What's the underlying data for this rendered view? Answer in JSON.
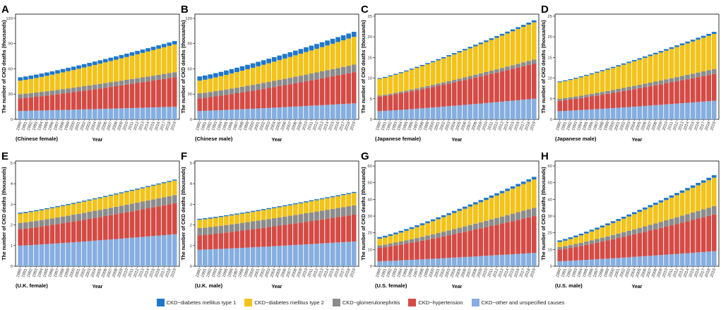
{
  "legend": [
    {
      "label": "CKD−diabetes mellitus type 1",
      "color": "#1f77c9"
    },
    {
      "label": "CKD−diabetes mellitus type 2",
      "color": "#f2c31b"
    },
    {
      "label": "CKD−glomerulonephritis",
      "color": "#8c8c8c"
    },
    {
      "label": "CKD−hypertension",
      "color": "#d44b45"
    },
    {
      "label": "CKD−other and unspecified causes",
      "color": "#86aee0"
    }
  ],
  "chart_data": [
    {
      "panel": "A",
      "type": "bar",
      "stacked": true,
      "subtitle": "(Chinese female)",
      "xlabel": "Year",
      "ylabel": "The number of CKD deaths (thousands)",
      "ylim": [
        0,
        125
      ],
      "yticks": [
        0,
        30,
        60,
        90,
        120
      ],
      "x_start": 1990,
      "x_end": 2019,
      "series": [
        {
          "name": "CKD−other and unspecified causes",
          "start": 10,
          "end": 15
        },
        {
          "name": "CKD−hypertension",
          "start": 15,
          "end": 35
        },
        {
          "name": "CKD−glomerulonephritis",
          "start": 5,
          "end": 6
        },
        {
          "name": "CKD−diabetes mellitus type 2",
          "start": 16,
          "end": 33
        },
        {
          "name": "CKD−diabetes mellitus type 1",
          "start": 4,
          "end": 4
        }
      ]
    },
    {
      "panel": "B",
      "type": "bar",
      "stacked": true,
      "subtitle": "(Chinese male)",
      "xlabel": "Year",
      "ylabel": "The number of CKD deaths (thousands)",
      "ylim": [
        0,
        125
      ],
      "yticks": [
        0,
        30,
        60,
        90,
        120
      ],
      "x_start": 1990,
      "x_end": 2019,
      "series": [
        {
          "name": "CKD−other and unspecified causes",
          "start": 10,
          "end": 19
        },
        {
          "name": "CKD−hypertension",
          "start": 15,
          "end": 37
        },
        {
          "name": "CKD−glomerulonephritis",
          "start": 6,
          "end": 9
        },
        {
          "name": "CKD−diabetes mellitus type 2",
          "start": 15,
          "end": 33
        },
        {
          "name": "CKD−diabetes mellitus type 1",
          "start": 5,
          "end": 6
        }
      ]
    },
    {
      "panel": "C",
      "type": "bar",
      "stacked": true,
      "subtitle": "(Japanese female)",
      "xlabel": "Year",
      "ylabel": "The number of CKD deaths (thousands)",
      "ylim": [
        0,
        25.5
      ],
      "yticks": [
        0,
        5,
        10,
        15,
        20,
        25
      ],
      "x_start": 1990,
      "x_end": 2019,
      "series": [
        {
          "name": "CKD−other and unspecified causes",
          "start": 2,
          "end": 5
        },
        {
          "name": "CKD−hypertension",
          "start": 3.5,
          "end": 8.5
        },
        {
          "name": "CKD−glomerulonephritis",
          "start": 0.3,
          "end": 1
        },
        {
          "name": "CKD−diabetes mellitus type 2",
          "start": 4,
          "end": 9
        },
        {
          "name": "CKD−diabetes mellitus type 1",
          "start": 0.2,
          "end": 0.5
        }
      ]
    },
    {
      "panel": "D",
      "type": "bar",
      "stacked": true,
      "subtitle": "(Japanese male)",
      "xlabel": "Year",
      "ylabel": "The number of CKD deaths (thousands)",
      "ylim": [
        0,
        25.5
      ],
      "yticks": [
        0,
        5,
        10,
        15,
        20,
        25
      ],
      "x_start": 1990,
      "x_end": 2019,
      "series": [
        {
          "name": "CKD−other and unspecified causes",
          "start": 2,
          "end": 4.5
        },
        {
          "name": "CKD−hypertension",
          "start": 2.5,
          "end": 6.5
        },
        {
          "name": "CKD−glomerulonephritis",
          "start": 0.5,
          "end": 1.2
        },
        {
          "name": "CKD−diabetes mellitus type 2",
          "start": 4,
          "end": 8.5
        },
        {
          "name": "CKD−diabetes mellitus type 1",
          "start": 0.2,
          "end": 0.5
        }
      ]
    },
    {
      "panel": "E",
      "type": "bar",
      "stacked": true,
      "subtitle": "(U.K. female)",
      "xlabel": "Year",
      "ylabel": "The number of CKD deaths (thousands)",
      "ylim": [
        0,
        5.1
      ],
      "yticks": [
        0,
        1,
        2,
        3,
        4,
        5
      ],
      "x_start": 1990,
      "x_end": 2019,
      "series": [
        {
          "name": "CKD−other and unspecified causes",
          "start": 1.0,
          "end": 1.55
        },
        {
          "name": "CKD−hypertension",
          "start": 0.8,
          "end": 1.5
        },
        {
          "name": "CKD−glomerulonephritis",
          "start": 0.3,
          "end": 0.4
        },
        {
          "name": "CKD−diabetes mellitus type 2",
          "start": 0.45,
          "end": 0.7
        },
        {
          "name": "CKD−diabetes mellitus type 1",
          "start": 0.05,
          "end": 0.05
        }
      ]
    },
    {
      "panel": "F",
      "type": "bar",
      "stacked": true,
      "subtitle": "(U.K. male)",
      "xlabel": "Year",
      "ylabel": "The number of CKD deaths (thousands)",
      "ylim": [
        0,
        5.1
      ],
      "yticks": [
        0,
        1,
        2,
        3,
        4,
        5
      ],
      "x_start": 1990,
      "x_end": 2019,
      "series": [
        {
          "name": "CKD−other and unspecified causes",
          "start": 0.8,
          "end": 1.2
        },
        {
          "name": "CKD−hypertension",
          "start": 0.7,
          "end": 1.3
        },
        {
          "name": "CKD−glomerulonephritis",
          "start": 0.35,
          "end": 0.45
        },
        {
          "name": "CKD−diabetes mellitus type 2",
          "start": 0.4,
          "end": 0.6
        },
        {
          "name": "CKD−diabetes mellitus type 1",
          "start": 0.05,
          "end": 0.05
        }
      ]
    },
    {
      "panel": "G",
      "type": "bar",
      "stacked": true,
      "subtitle": "(U.S. female)",
      "xlabel": "Year",
      "ylabel": "The number of CKD deaths (thousands)",
      "ylim": [
        0,
        63
      ],
      "yticks": [
        0,
        10,
        20,
        30,
        40,
        50,
        60
      ],
      "x_start": 1990,
      "x_end": 2019,
      "series": [
        {
          "name": "CKD−other and unspecified causes",
          "start": 3,
          "end": 8
        },
        {
          "name": "CKD−hypertension",
          "start": 8,
          "end": 22
        },
        {
          "name": "CKD−glomerulonephritis",
          "start": 1.5,
          "end": 5
        },
        {
          "name": "CKD−diabetes mellitus type 2",
          "start": 4,
          "end": 17
        },
        {
          "name": "CKD−diabetes mellitus type 1",
          "start": 1,
          "end": 1.5
        }
      ]
    },
    {
      "panel": "H",
      "type": "bar",
      "stacked": true,
      "subtitle": "(U.S. male)",
      "xlabel": "Year",
      "ylabel": "The number of CKD deaths (thousands)",
      "ylim": [
        0,
        63
      ],
      "yticks": [
        0,
        10,
        20,
        30,
        40,
        50,
        60
      ],
      "x_start": 1990,
      "x_end": 2019,
      "series": [
        {
          "name": "CKD−other and unspecified causes",
          "start": 3,
          "end": 9
        },
        {
          "name": "CKD−hypertension",
          "start": 7,
          "end": 22
        },
        {
          "name": "CKD−glomerulonephritis",
          "start": 1.5,
          "end": 5
        },
        {
          "name": "CKD−diabetes mellitus type 2",
          "start": 3,
          "end": 17
        },
        {
          "name": "CKD−diabetes mellitus type 1",
          "start": 1,
          "end": 1.5
        }
      ]
    }
  ]
}
